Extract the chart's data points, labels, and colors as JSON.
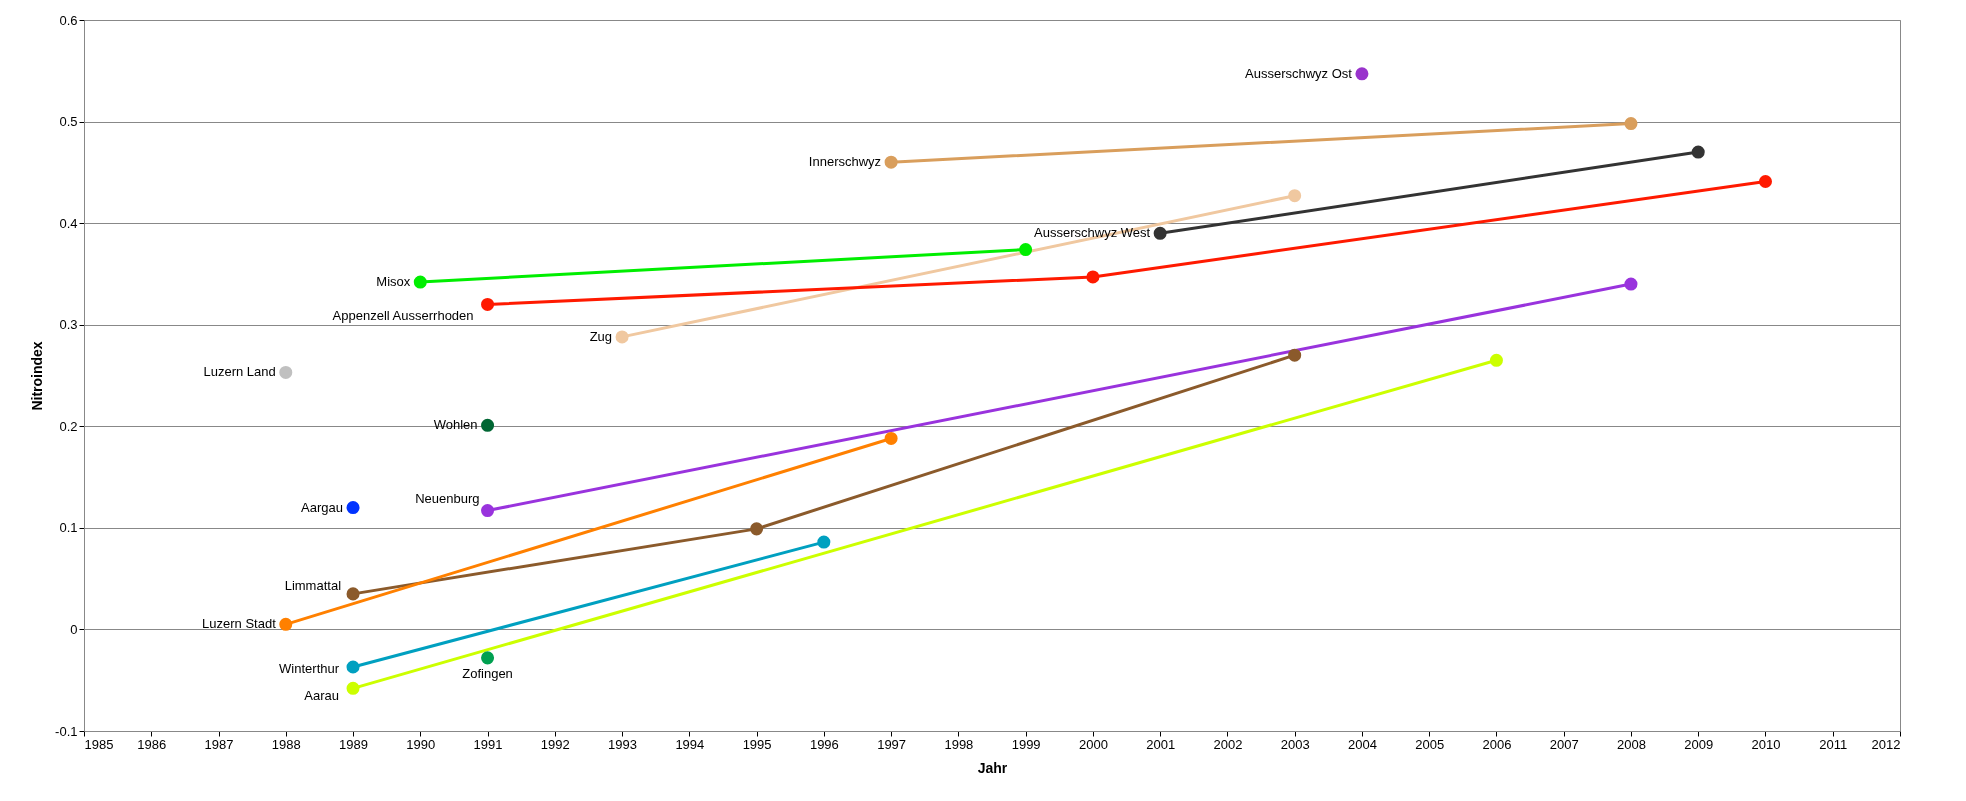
{
  "chart_data": {
    "type": "line",
    "xlabel": "Jahr",
    "ylabel": "Nitroindex",
    "xlim": [
      1985,
      2012
    ],
    "xticks": [
      1985,
      1986,
      1987,
      1988,
      1989,
      1990,
      1991,
      1992,
      1993,
      1994,
      1995,
      1996,
      1997,
      1998,
      1999,
      2000,
      2001,
      2002,
      2003,
      2004,
      2005,
      2006,
      2007,
      2008,
      2009,
      2010,
      2011,
      2012
    ],
    "ylim": [
      -0.1,
      0.6
    ],
    "yticks": [
      -0.1,
      0,
      0.1,
      0.2,
      0.3,
      0.4,
      0.5,
      0.6
    ],
    "grid": "y",
    "legend": false,
    "marker": "circle",
    "line_style": "solid",
    "series": [
      {
        "name": "Ausserschwyz Ost",
        "color": "#9933cc",
        "x": [
          2004
        ],
        "values": [
          0.547
        ]
      },
      {
        "name": "Innerschwyz",
        "color": "#d99e5c",
        "x": [
          1997,
          2008
        ],
        "values": [
          0.46,
          0.498
        ]
      },
      {
        "name": "Ausserschwyz West",
        "color": "#333333",
        "x": [
          2001,
          2009
        ],
        "values": [
          0.39,
          0.47
        ]
      },
      {
        "name": "Zug",
        "color": "#f0c8a0",
        "x": [
          1993,
          2003
        ],
        "values": [
          0.288,
          0.427
        ]
      },
      {
        "name": "Misox",
        "color": "#00ee00",
        "x": [
          1990,
          1999
        ],
        "values": [
          0.342,
          0.374
        ]
      },
      {
        "name": "Appenzell Ausserrhoden",
        "color": "#ff1a00",
        "x": [
          1991,
          2000,
          2010
        ],
        "values": [
          0.32,
          0.347,
          0.441
        ]
      },
      {
        "name": "Luzern Land",
        "color": "#c0c0c0",
        "x": [
          1988
        ],
        "values": [
          0.253
        ]
      },
      {
        "name": "Wohlen",
        "color": "#006633",
        "x": [
          1991
        ],
        "values": [
          0.201
        ]
      },
      {
        "name": "Aargau",
        "color": "#0033ff",
        "x": [
          1989
        ],
        "values": [
          0.12
        ]
      },
      {
        "name": "Neuenburg",
        "color": "#9933dd",
        "x": [
          1991,
          2008
        ],
        "values": [
          0.117,
          0.34
        ]
      },
      {
        "name": "Limmattal",
        "color": "#8b5a2b",
        "x": [
          1989,
          1995,
          2003
        ],
        "values": [
          0.035,
          0.099,
          0.27
        ]
      },
      {
        "name": "Luzern Stadt",
        "color": "#ff8000",
        "x": [
          1988,
          1997
        ],
        "values": [
          0.005,
          0.188
        ]
      },
      {
        "name": "Winterthur",
        "color": "#00a0c0",
        "x": [
          1989,
          1996
        ],
        "values": [
          -0.037,
          0.086
        ]
      },
      {
        "name": "Zofingen",
        "color": "#00a050",
        "x": [
          1991
        ],
        "values": [
          -0.028
        ]
      },
      {
        "name": "Aarau",
        "color": "#ccff00",
        "x": [
          1989,
          2006
        ],
        "values": [
          -0.058,
          0.265
        ]
      }
    ]
  }
}
